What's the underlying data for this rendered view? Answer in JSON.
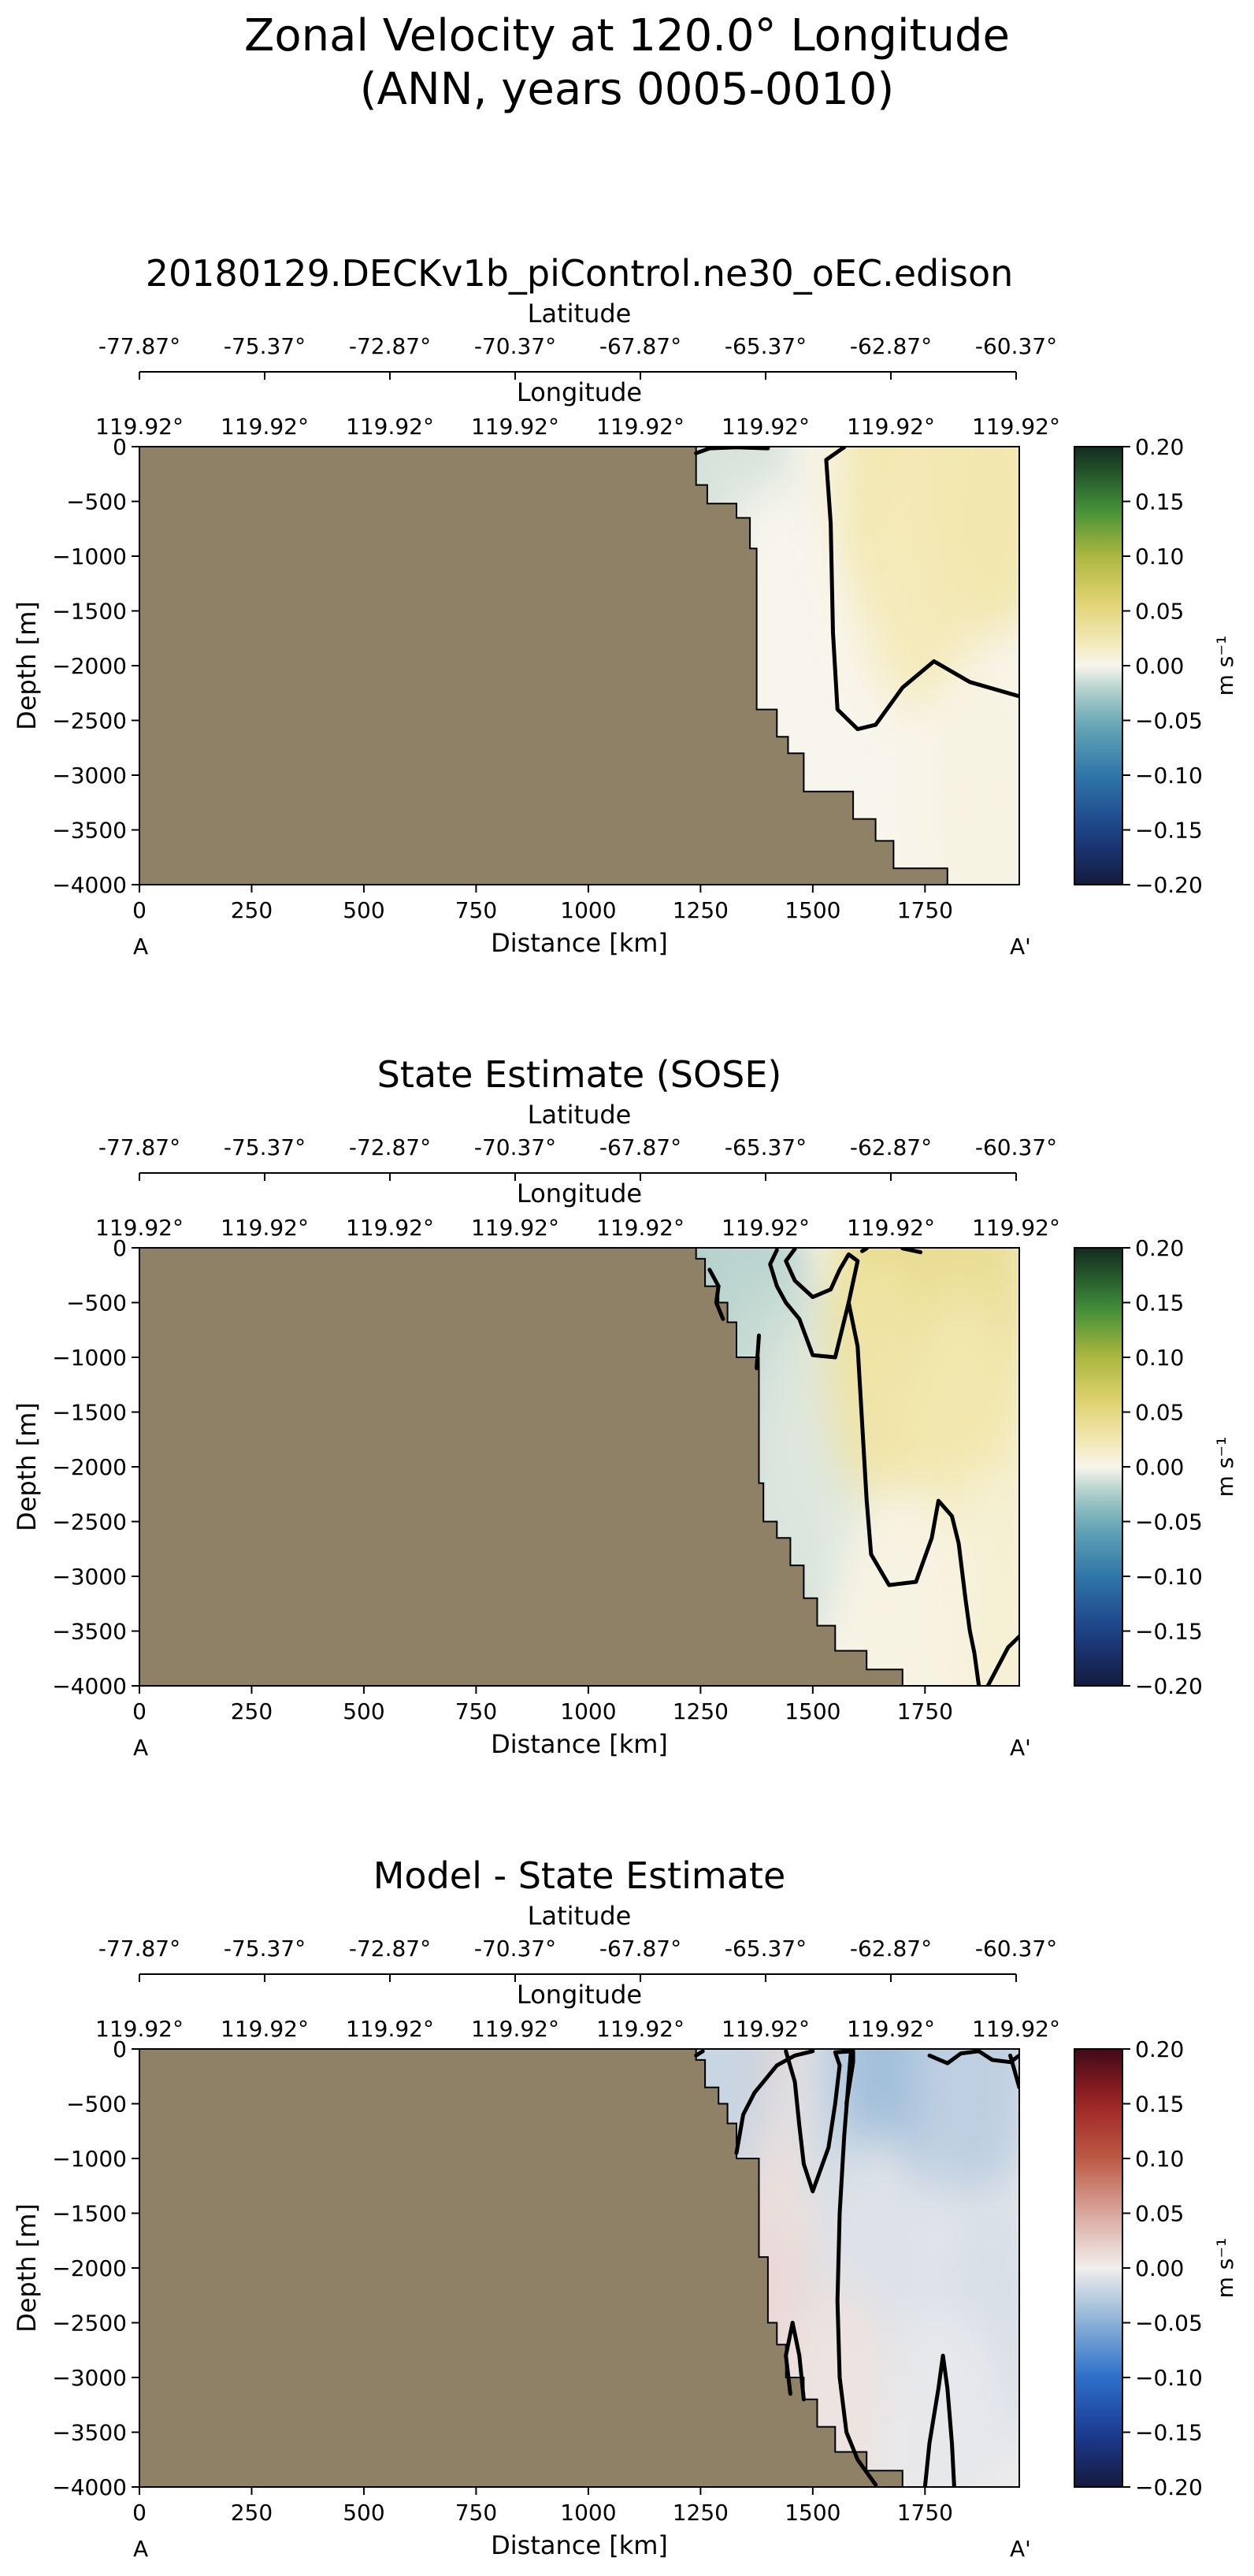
{
  "figure": {
    "title_line1": "Zonal Velocity at 120.0° Longitude",
    "title_line2": "(ANN, years 0005-0010)"
  },
  "chart_data": [
    {
      "type": "heatmap",
      "title": "20180129.DECKv1b_piControl.ne30_oEC.edison",
      "xlabel": "Distance [km]",
      "ylabel": "Depth [m]",
      "xlim": [
        0,
        1960
      ],
      "ylim": [
        -4000,
        0
      ],
      "x_ticks": [
        0,
        250,
        500,
        750,
        1000,
        1250,
        1500,
        1750
      ],
      "y_ticks": [
        0,
        -500,
        -1000,
        -1500,
        -2000,
        -2500,
        -3000,
        -3500,
        -4000
      ],
      "top_axis_1": {
        "label": "Latitude",
        "ticks": [
          "-77.87°",
          "-75.37°",
          "-72.87°",
          "-70.37°",
          "-67.87°",
          "-65.37°",
          "-62.87°",
          "-60.37°"
        ]
      },
      "top_axis_2": {
        "label": "Longitude",
        "ticks": [
          "119.92°",
          "119.92°",
          "119.92°",
          "119.92°",
          "119.92°",
          "119.92°",
          "119.92°",
          "119.92°"
        ]
      },
      "section_start": "A",
      "section_end": "A'",
      "colorbar": {
        "colormap": "balance-velocity",
        "range": [
          -0.2,
          0.2
        ],
        "label": "m s⁻¹",
        "ticks": [
          "0.20",
          "0.15",
          "0.10",
          "0.05",
          "0.00",
          "−0.05",
          "−0.10",
          "−0.15",
          "−0.20"
        ]
      },
      "land_color": "#8f8165",
      "bathymetry": [
        [
          1240,
          0
        ],
        [
          1240,
          -350
        ],
        [
          1265,
          -350
        ],
        [
          1265,
          -520
        ],
        [
          1330,
          -520
        ],
        [
          1330,
          -650
        ],
        [
          1360,
          -650
        ],
        [
          1360,
          -930
        ],
        [
          1375,
          -930
        ],
        [
          1375,
          -2400
        ],
        [
          1420,
          -2400
        ],
        [
          1420,
          -2650
        ],
        [
          1445,
          -2650
        ],
        [
          1445,
          -2800
        ],
        [
          1480,
          -2800
        ],
        [
          1480,
          -3150
        ],
        [
          1590,
          -3150
        ],
        [
          1590,
          -3400
        ],
        [
          1640,
          -3400
        ],
        [
          1640,
          -3600
        ],
        [
          1680,
          -3600
        ],
        [
          1680,
          -3850
        ],
        [
          1800,
          -3850
        ],
        [
          1800,
          -4000
        ]
      ],
      "zero_contours": [
        [
          [
            1240,
            -60
          ],
          [
            1270,
            -15
          ],
          [
            1330,
            -5
          ],
          [
            1400,
            -15
          ]
        ],
        [
          [
            1570,
            -5
          ],
          [
            1530,
            -120
          ],
          [
            1540,
            -700
          ],
          [
            1545,
            -1700
          ],
          [
            1555,
            -2400
          ],
          [
            1600,
            -2580
          ],
          [
            1640,
            -2540
          ],
          [
            1700,
            -2200
          ],
          [
            1770,
            -1960
          ],
          [
            1850,
            -2150
          ],
          [
            1960,
            -2280
          ]
        ]
      ],
      "fields": [
        {
          "x": 1255,
          "y": -120,
          "value": -0.02
        },
        {
          "x": 1300,
          "y": -500,
          "value": -0.01
        },
        {
          "x": 1420,
          "y": -1500,
          "value": 0.0
        },
        {
          "x": 1460,
          "y": -3000,
          "value": 0.0
        },
        {
          "x": 1700,
          "y": -300,
          "value": 0.025
        },
        {
          "x": 1750,
          "y": -1200,
          "value": 0.02
        },
        {
          "x": 1900,
          "y": -500,
          "value": 0.025
        },
        {
          "x": 1880,
          "y": -3200,
          "value": 0.004
        }
      ]
    },
    {
      "type": "heatmap",
      "title": "State Estimate (SOSE)",
      "xlabel": "Distance [km]",
      "ylabel": "Depth [m]",
      "xlim": [
        0,
        1960
      ],
      "ylim": [
        -4000,
        0
      ],
      "x_ticks": [
        0,
        250,
        500,
        750,
        1000,
        1250,
        1500,
        1750
      ],
      "y_ticks": [
        0,
        -500,
        -1000,
        -1500,
        -2000,
        -2500,
        -3000,
        -3500,
        -4000
      ],
      "top_axis_1": {
        "label": "Latitude",
        "ticks": [
          "-77.87°",
          "-75.37°",
          "-72.87°",
          "-70.37°",
          "-67.87°",
          "-65.37°",
          "-62.87°",
          "-60.37°"
        ]
      },
      "top_axis_2": {
        "label": "Longitude",
        "ticks": [
          "119.92°",
          "119.92°",
          "119.92°",
          "119.92°",
          "119.92°",
          "119.92°",
          "119.92°",
          "119.92°"
        ]
      },
      "section_start": "A",
      "section_end": "A'",
      "colorbar": {
        "colormap": "balance-velocity",
        "range": [
          -0.2,
          0.2
        ],
        "label": "m s⁻¹",
        "ticks": [
          "0.20",
          "0.15",
          "0.10",
          "0.05",
          "0.00",
          "−0.05",
          "−0.10",
          "−0.15",
          "−0.20"
        ]
      },
      "land_color": "#8f8165",
      "bathymetry": [
        [
          1240,
          0
        ],
        [
          1240,
          -100
        ],
        [
          1260,
          -100
        ],
        [
          1260,
          -350
        ],
        [
          1290,
          -350
        ],
        [
          1290,
          -500
        ],
        [
          1310,
          -500
        ],
        [
          1310,
          -680
        ],
        [
          1330,
          -680
        ],
        [
          1330,
          -1000
        ],
        [
          1380,
          -1000
        ],
        [
          1380,
          -2150
        ],
        [
          1390,
          -2150
        ],
        [
          1390,
          -2500
        ],
        [
          1420,
          -2500
        ],
        [
          1420,
          -2650
        ],
        [
          1450,
          -2650
        ],
        [
          1450,
          -2900
        ],
        [
          1480,
          -2900
        ],
        [
          1480,
          -3200
        ],
        [
          1510,
          -3200
        ],
        [
          1510,
          -3450
        ],
        [
          1550,
          -3450
        ],
        [
          1550,
          -3680
        ],
        [
          1620,
          -3680
        ],
        [
          1620,
          -3850
        ],
        [
          1700,
          -3850
        ],
        [
          1700,
          -4000
        ]
      ],
      "zero_contours": [
        [
          [
            1270,
            -200
          ],
          [
            1290,
            -350
          ],
          [
            1285,
            -500
          ],
          [
            1300,
            -650
          ]
        ],
        [
          [
            1380,
            -800
          ],
          [
            1375,
            -1100
          ]
        ],
        [
          [
            1420,
            -20
          ],
          [
            1405,
            -150
          ],
          [
            1420,
            -350
          ],
          [
            1440,
            -500
          ],
          [
            1470,
            -650
          ],
          [
            1500,
            -980
          ],
          [
            1550,
            -1000
          ],
          [
            1580,
            -500
          ],
          [
            1600,
            -120
          ],
          [
            1580,
            -60
          ],
          [
            1560,
            -200
          ],
          [
            1540,
            -380
          ],
          [
            1500,
            -450
          ],
          [
            1460,
            -300
          ],
          [
            1440,
            -120
          ],
          [
            1460,
            -10
          ]
        ],
        [
          [
            1620,
            -5
          ],
          [
            1610,
            -30
          ]
        ],
        [
          [
            1700,
            -5
          ],
          [
            1740,
            -40
          ]
        ],
        [
          [
            1580,
            -500
          ],
          [
            1600,
            -900
          ],
          [
            1610,
            -1600
          ],
          [
            1620,
            -2300
          ],
          [
            1630,
            -2800
          ],
          [
            1670,
            -3080
          ],
          [
            1730,
            -3050
          ],
          [
            1765,
            -2650
          ],
          [
            1780,
            -2310
          ],
          [
            1810,
            -2450
          ],
          [
            1825,
            -2700
          ],
          [
            1840,
            -3200
          ],
          [
            1850,
            -3500
          ],
          [
            1860,
            -3700
          ],
          [
            1870,
            -4000
          ]
        ],
        [
          [
            1890,
            -4000
          ],
          [
            1935,
            -3650
          ],
          [
            1960,
            -3550
          ]
        ]
      ],
      "fields": [
        {
          "x": 1280,
          "y": -150,
          "value": -0.03
        },
        {
          "x": 1340,
          "y": -400,
          "value": -0.02
        },
        {
          "x": 1420,
          "y": -1500,
          "value": -0.015
        },
        {
          "x": 1460,
          "y": -2500,
          "value": -0.01
        },
        {
          "x": 1530,
          "y": -1700,
          "value": -0.008
        },
        {
          "x": 1700,
          "y": -200,
          "value": 0.05
        },
        {
          "x": 1680,
          "y": -1200,
          "value": 0.03
        },
        {
          "x": 1850,
          "y": -300,
          "value": 0.04
        },
        {
          "x": 1830,
          "y": -1600,
          "value": 0.025
        },
        {
          "x": 1900,
          "y": -3200,
          "value": 0.01
        },
        {
          "x": 1700,
          "y": -3400,
          "value": 0.004
        }
      ]
    },
    {
      "type": "heatmap",
      "title": "Model - State Estimate",
      "xlabel": "Distance [km]",
      "ylabel": "Depth [m]",
      "xlim": [
        0,
        1960
      ],
      "ylim": [
        -4000,
        0
      ],
      "x_ticks": [
        0,
        250,
        500,
        750,
        1000,
        1250,
        1500,
        1750
      ],
      "y_ticks": [
        0,
        -500,
        -1000,
        -1500,
        -2000,
        -2500,
        -3000,
        -3500,
        -4000
      ],
      "top_axis_1": {
        "label": "Latitude",
        "ticks": [
          "-77.87°",
          "-75.37°",
          "-72.87°",
          "-70.37°",
          "-67.87°",
          "-65.37°",
          "-62.87°",
          "-60.37°"
        ]
      },
      "top_axis_2": {
        "label": "Longitude",
        "ticks": [
          "119.92°",
          "119.92°",
          "119.92°",
          "119.92°",
          "119.92°",
          "119.92°",
          "119.92°",
          "119.92°"
        ]
      },
      "section_start": "A",
      "section_end": "A'",
      "colorbar": {
        "colormap": "balance-difference",
        "range": [
          -0.2,
          0.2
        ],
        "label": "m s⁻¹",
        "ticks": [
          "0.20",
          "0.15",
          "0.10",
          "0.05",
          "0.00",
          "−0.05",
          "−0.10",
          "−0.15",
          "−0.20"
        ]
      },
      "land_color": "#8f8165",
      "bathymetry": [
        [
          1240,
          0
        ],
        [
          1240,
          -100
        ],
        [
          1260,
          -100
        ],
        [
          1260,
          -350
        ],
        [
          1290,
          -350
        ],
        [
          1290,
          -500
        ],
        [
          1310,
          -500
        ],
        [
          1310,
          -680
        ],
        [
          1330,
          -680
        ],
        [
          1330,
          -1000
        ],
        [
          1380,
          -1000
        ],
        [
          1380,
          -1900
        ],
        [
          1400,
          -1900
        ],
        [
          1400,
          -2500
        ],
        [
          1420,
          -2500
        ],
        [
          1420,
          -2700
        ],
        [
          1440,
          -2700
        ],
        [
          1440,
          -3000
        ],
        [
          1480,
          -3000
        ],
        [
          1480,
          -3200
        ],
        [
          1510,
          -3200
        ],
        [
          1510,
          -3450
        ],
        [
          1550,
          -3450
        ],
        [
          1550,
          -3680
        ],
        [
          1620,
          -3680
        ],
        [
          1620,
          -3850
        ],
        [
          1700,
          -3850
        ],
        [
          1700,
          -4000
        ],
        [
          1800,
          -4000
        ]
      ],
      "zero_contours": [
        [
          [
            1240,
            -60
          ],
          [
            1255,
            -20
          ]
        ],
        [
          [
            1330,
            -950
          ],
          [
            1345,
            -600
          ],
          [
            1370,
            -400
          ],
          [
            1420,
            -150
          ],
          [
            1460,
            -60
          ],
          [
            1500,
            -20
          ]
        ],
        [
          [
            1440,
            -20
          ],
          [
            1460,
            -300
          ],
          [
            1470,
            -700
          ],
          [
            1480,
            -1050
          ],
          [
            1500,
            -1300
          ],
          [
            1535,
            -900
          ],
          [
            1550,
            -500
          ],
          [
            1560,
            -150
          ],
          [
            1550,
            -30
          ],
          [
            1590,
            -20
          ],
          [
            1590,
            -120
          ],
          [
            1575,
            -500
          ]
        ],
        [
          [
            1585,
            -20
          ],
          [
            1570,
            -800
          ],
          [
            1560,
            -1500
          ],
          [
            1555,
            -2300
          ],
          [
            1560,
            -3000
          ],
          [
            1575,
            -3500
          ],
          [
            1600,
            -3750
          ],
          [
            1640,
            -3980
          ]
        ],
        [
          [
            1450,
            -3150
          ],
          [
            1440,
            -2800
          ],
          [
            1455,
            -2500
          ],
          [
            1470,
            -2800
          ],
          [
            1480,
            -3200
          ]
        ],
        [
          [
            1750,
            -4000
          ],
          [
            1760,
            -3600
          ],
          [
            1780,
            -3100
          ],
          [
            1790,
            -2800
          ],
          [
            1800,
            -3100
          ],
          [
            1810,
            -3600
          ],
          [
            1815,
            -4000
          ]
        ],
        [
          [
            1760,
            -60
          ],
          [
            1800,
            -130
          ],
          [
            1830,
            -40
          ],
          [
            1870,
            -20
          ],
          [
            1900,
            -100
          ],
          [
            1940,
            -120
          ],
          [
            1960,
            -60
          ]
        ],
        [
          [
            1940,
            -60
          ],
          [
            1960,
            -350
          ]
        ]
      ],
      "fields": [
        {
          "x": 1420,
          "y": -300,
          "value": 0.03
        },
        {
          "x": 1400,
          "y": -1600,
          "value": 0.01
        },
        {
          "x": 1460,
          "y": -2300,
          "value": 0.015
        },
        {
          "x": 1500,
          "y": -700,
          "value": 0.01
        },
        {
          "x": 1620,
          "y": -500,
          "value": -0.015
        },
        {
          "x": 1700,
          "y": -150,
          "value": -0.04
        },
        {
          "x": 1860,
          "y": -300,
          "value": -0.025
        },
        {
          "x": 1650,
          "y": -2000,
          "value": -0.01
        },
        {
          "x": 1900,
          "y": -2500,
          "value": -0.012
        },
        {
          "x": 1560,
          "y": -3400,
          "value": 0.008
        },
        {
          "x": 1800,
          "y": -3600,
          "value": -0.005
        },
        {
          "x": 1270,
          "y": -120,
          "value": -0.02
        }
      ]
    }
  ]
}
